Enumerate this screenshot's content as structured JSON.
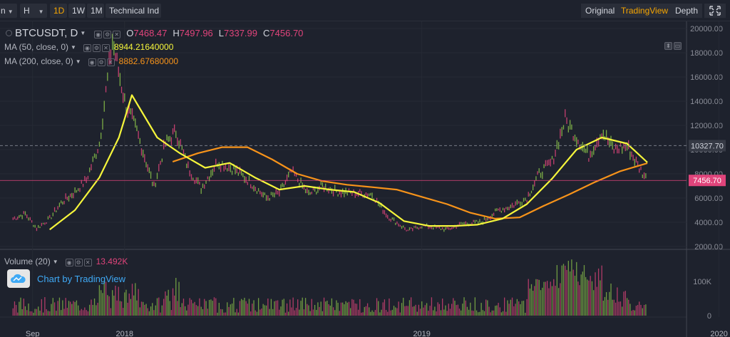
{
  "toolbar": {
    "symbol_fragment": "n",
    "interval": "H",
    "ranges": [
      "1D",
      "1W",
      "1M"
    ],
    "active_range": "1D",
    "indicators_label": "Technical Ind",
    "view_modes": [
      "Original",
      "TradingView",
      "Depth"
    ],
    "active_view": "TradingView",
    "fullscreen_icon": "fullscreen-icon"
  },
  "legend": {
    "symbol": "BTCUSDT, D",
    "open_label": "O",
    "open": "7468.47",
    "high_label": "H",
    "high": "7497.96",
    "low_label": "L",
    "low": "7337.99",
    "close_label": "C",
    "close": "7456.70",
    "ma50_name": "MA (50, close, 0)",
    "ma50_value": "8944.21640000",
    "ma200_name": "MA (200, close, 0)",
    "ma200_value": "8882.67680000",
    "volume_name": "Volume (20)",
    "volume_value": "13.492K"
  },
  "badge": {
    "text": "Chart by TradingView"
  },
  "colors": {
    "background": "#1e222d",
    "up": "#8bc34a",
    "down": "#e0447b",
    "ma50": "#f5f53b",
    "ma200": "#f7931a",
    "accent": "#f7a600"
  },
  "chart_data": {
    "type": "line",
    "price_ticks": [
      "20000.00",
      "18000.00",
      "16000.00",
      "14000.00",
      "12000.00",
      "10000.00",
      "8000.00",
      "6000.00",
      "4000.00",
      "2000.00"
    ],
    "volume_ticks": [
      "100K",
      "0"
    ],
    "x_ticks": [
      "Sep",
      "2018",
      "2019",
      "2020"
    ],
    "last_price_tag": "7456.70",
    "crosshair_price_tag": "10327.70",
    "ylim": [
      2000,
      20000
    ],
    "series": [
      {
        "name": "BTCUSDT, D",
        "x": [
          "2017-08-17",
          "2017-09-01",
          "2017-09-15",
          "2017-10-01",
          "2017-10-15",
          "2017-11-01",
          "2017-11-15",
          "2017-12-01",
          "2017-12-17",
          "2018-01-01",
          "2018-01-16",
          "2018-02-06",
          "2018-02-20",
          "2018-03-05",
          "2018-03-20",
          "2018-04-05",
          "2018-04-25",
          "2018-05-15",
          "2018-06-01",
          "2018-06-24",
          "2018-07-10",
          "2018-07-25",
          "2018-08-15",
          "2018-09-01",
          "2018-09-20",
          "2018-10-15",
          "2018-11-01",
          "2018-11-20",
          "2018-12-15",
          "2019-01-01",
          "2019-01-15",
          "2019-02-01",
          "2019-02-20",
          "2019-03-15",
          "2019-04-05",
          "2019-04-20",
          "2019-05-10",
          "2019-05-25",
          "2019-06-10",
          "2019-06-26",
          "2019-07-10",
          "2019-07-25",
          "2019-08-10",
          "2019-08-25",
          "2019-09-10",
          "2019-09-25",
          "2019-10-05"
        ],
        "values": [
          4300,
          4700,
          3500,
          4300,
          5600,
          6500,
          7500,
          10500,
          19000,
          14000,
          11500,
          6900,
          10500,
          11500,
          8500,
          6800,
          9000,
          8400,
          7500,
          6000,
          6400,
          8200,
          6300,
          7000,
          6500,
          6400,
          6300,
          4500,
          3300,
          3700,
          3600,
          3400,
          3900,
          4000,
          5000,
          5300,
          6000,
          8000,
          9000,
          12500,
          11000,
          9500,
          11500,
          10000,
          10300,
          8500,
          7456
        ]
      },
      {
        "name": "MA (50, close, 0)",
        "x": [
          "2017-10-01",
          "2017-11-01",
          "2017-12-01",
          "2017-12-25",
          "2018-01-10",
          "2018-02-10",
          "2018-03-10",
          "2018-04-10",
          "2018-05-10",
          "2018-06-10",
          "2018-07-10",
          "2018-08-10",
          "2018-09-10",
          "2018-10-10",
          "2018-11-10",
          "2018-12-10",
          "2019-01-10",
          "2019-02-10",
          "2019-03-10",
          "2019-04-10",
          "2019-05-10",
          "2019-06-10",
          "2019-07-10",
          "2019-08-10",
          "2019-09-10",
          "2019-10-05"
        ],
        "values": [
          3400,
          5000,
          7700,
          11000,
          14500,
          11000,
          9700,
          8500,
          8900,
          7700,
          6700,
          7000,
          6700,
          6500,
          5600,
          4100,
          3700,
          3700,
          3800,
          4300,
          5500,
          7600,
          10000,
          11000,
          10500,
          8944
        ]
      },
      {
        "name": "MA (200, close, 0)",
        "x": [
          "2018-03-01",
          "2018-04-01",
          "2018-05-01",
          "2018-06-01",
          "2018-07-01",
          "2018-08-01",
          "2018-09-01",
          "2018-10-01",
          "2018-11-01",
          "2018-12-01",
          "2019-01-01",
          "2019-02-01",
          "2019-03-01",
          "2019-04-01",
          "2019-05-01",
          "2019-06-01",
          "2019-07-01",
          "2019-08-01",
          "2019-09-01",
          "2019-10-05"
        ],
        "values": [
          9000,
          9700,
          10200,
          10200,
          9200,
          8000,
          7400,
          7100,
          6900,
          6700,
          6100,
          5500,
          4800,
          4300,
          4400,
          5400,
          6300,
          7300,
          8200,
          8883
        ]
      }
    ]
  }
}
